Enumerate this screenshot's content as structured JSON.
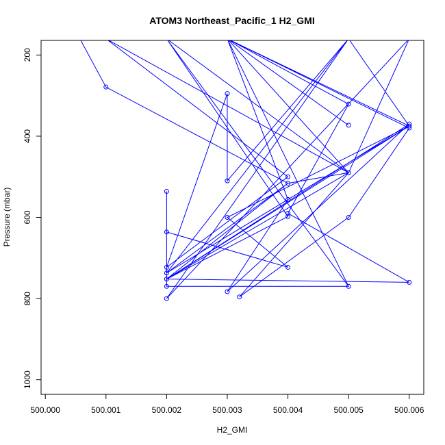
{
  "chart_data": {
    "type": "line",
    "title": "ATOM3 Northeast_Pacific_1 H2_GMI",
    "xlabel": "H2_GMI",
    "ylabel": "Pressure (mbar)",
    "xlim": [
      499.99993,
      500.00624
    ],
    "ylim": [
      1036,
      164
    ],
    "y_reversed": true,
    "grid": false,
    "series_color": "#0000ff",
    "x_ticks": [
      500.0,
      500.001,
      500.002,
      500.003,
      500.004,
      500.005,
      500.006
    ],
    "x_tick_labels": [
      "500.000",
      "500.001",
      "500.002",
      "500.003",
      "500.004",
      "500.005",
      "500.006"
    ],
    "y_ticks": [
      200,
      400,
      600,
      800,
      1000
    ],
    "y_tick_labels": [
      "200",
      "400",
      "600",
      "800",
      "1000"
    ],
    "series": [
      {
        "line": [
          [
            500.00057,
            160
          ],
          [
            500.001,
            279
          ],
          [
            500.004,
            516
          ],
          [
            500.002,
            737
          ],
          [
            500.006,
            375
          ],
          [
            500.003,
            600
          ],
          [
            500.004,
            723
          ],
          [
            500.002,
            636
          ],
          [
            500.002,
            536
          ],
          [
            500.002,
            770
          ],
          [
            500.005,
            770
          ],
          [
            500.002,
            160
          ],
          [
            500.005,
            490
          ],
          [
            500.004,
            516
          ],
          [
            500.002,
            752
          ],
          [
            500.006,
            370
          ],
          [
            500.003,
            783
          ],
          [
            500.004,
            556
          ],
          [
            500.003,
            160
          ],
          [
            500.006,
            380
          ],
          [
            500.005,
            600
          ],
          [
            500.0032,
            796
          ],
          [
            500.005,
            490
          ],
          [
            500.001,
            160
          ],
          [
            500.004,
            500
          ],
          [
            500.002,
            723
          ],
          [
            500.003,
            295
          ],
          [
            500.003,
            510
          ],
          [
            500.005,
            160
          ],
          [
            500.002,
            800
          ],
          [
            500.006,
            160
          ],
          [
            500.005,
            490
          ],
          [
            500.002,
            752
          ],
          [
            500.006,
            760
          ],
          [
            500.004,
            590
          ],
          [
            500.005,
            321
          ],
          [
            500.003,
            160
          ],
          [
            500.005,
            373
          ],
          [
            500.003,
            160
          ],
          [
            500.006,
            375
          ],
          [
            500.002,
            737
          ],
          [
            500.005,
            160
          ],
          [
            500.006,
            375
          ],
          [
            500.002,
            752
          ],
          [
            500.005,
            490
          ],
          [
            500.003,
            160
          ],
          [
            500.005,
            770
          ],
          [
            500.003,
            160
          ],
          [
            500.005,
            490
          ],
          [
            500.002,
            752
          ],
          [
            500.004,
            598
          ],
          [
            500.002,
            160
          ]
        ],
        "points": [
          [
            500.001,
            279
          ],
          [
            500.003,
            295
          ],
          [
            500.005,
            321
          ],
          [
            500.005,
            373
          ],
          [
            500.006,
            370
          ],
          [
            500.006,
            375
          ],
          [
            500.006,
            380
          ],
          [
            500.005,
            490
          ],
          [
            500.004,
            500
          ],
          [
            500.003,
            510
          ],
          [
            500.004,
            516
          ],
          [
            500.002,
            536
          ],
          [
            500.004,
            556
          ],
          [
            500.004,
            590
          ],
          [
            500.004,
            598
          ],
          [
            500.003,
            600
          ],
          [
            500.005,
            600
          ],
          [
            500.002,
            636
          ],
          [
            500.002,
            723
          ],
          [
            500.004,
            723
          ],
          [
            500.002,
            737
          ],
          [
            500.002,
            752
          ],
          [
            500.006,
            760
          ],
          [
            500.002,
            770
          ],
          [
            500.005,
            770
          ],
          [
            500.003,
            783
          ],
          [
            500.0032,
            796
          ],
          [
            500.002,
            800
          ]
        ]
      }
    ]
  }
}
